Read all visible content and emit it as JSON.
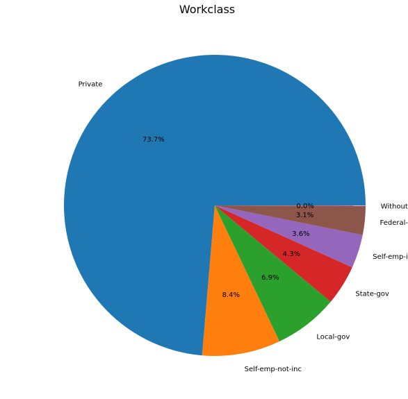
{
  "chart_data": {
    "type": "pie",
    "title": "Workclass",
    "start_angle_deg": 0,
    "direction": "counterclockwise",
    "slices": [
      {
        "label": "Private",
        "value": 73.7,
        "pct_label": "73.7%",
        "color": "#1f77b4"
      },
      {
        "label": "Self-emp-not-inc",
        "value": 8.4,
        "pct_label": "8.4%",
        "color": "#ff7f0e"
      },
      {
        "label": "Local-gov",
        "value": 6.9,
        "pct_label": "6.9%",
        "color": "#2ca02c"
      },
      {
        "label": "State-gov",
        "value": 4.3,
        "pct_label": "4.3%",
        "color": "#d62728"
      },
      {
        "label": "Self-emp-inc",
        "value": 3.6,
        "pct_label": "3.6%",
        "color": "#9467bd"
      },
      {
        "label": "Federal-gov",
        "value": 3.1,
        "pct_label": "3.1%",
        "color": "#8c564b"
      },
      {
        "label": "Without-pay",
        "value": 0.05,
        "pct_label": "0.0%",
        "color": "#e377c2"
      }
    ]
  }
}
